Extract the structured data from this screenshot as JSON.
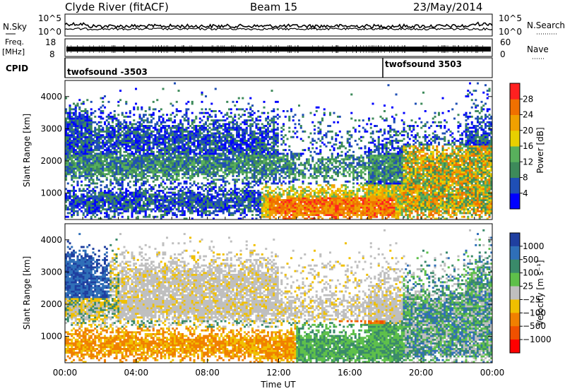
{
  "header": {
    "title": "Clyde River (fitACF)",
    "beam": "Beam 15",
    "date": "23/May/2014"
  },
  "noise_panel": {
    "left_label": "N.Sky",
    "right_label": "N.Search",
    "ticks": [
      "10^5",
      "10^0"
    ]
  },
  "freq_panel": {
    "left_label_1": "Freq.",
    "left_label_2": "[MHz]",
    "left_ticks": [
      "18",
      "8"
    ],
    "right_label": "Nave",
    "right_ticks": [
      "60",
      "0"
    ]
  },
  "cpid_panel": {
    "label": "CPID",
    "entries": [
      {
        "name": "twofsound -3503",
        "start_hour": 0
      },
      {
        "name": "twofsound 3503",
        "start_hour": 18
      }
    ]
  },
  "colors": {
    "power_scale": [
      "#0000ff",
      "#1f4fb5",
      "#3d8a5a",
      "#58b05c",
      "#e8d000",
      "#f0a000",
      "#f07000",
      "#ff2020"
    ],
    "velocity_scale": [
      "#1f3fa0",
      "#2f6fb8",
      "#3a8a6a",
      "#5ec04a",
      "#bfbfbf",
      "#f0c000",
      "#f08000",
      "#f05000",
      "#ff0000"
    ]
  },
  "chart_data": [
    {
      "type": "heatmap",
      "panel": "power",
      "ylabel": "Slant Range [km]",
      "xlabel": "",
      "x_range_hours": [
        0,
        24
      ],
      "ylim": [
        180,
        4500
      ],
      "y_ticks": [
        "1000",
        "2000",
        "3000",
        "4000"
      ],
      "colorbar": {
        "label": "Power [dB]",
        "tick_labels": [
          "4",
          "8",
          "12",
          "16",
          "20",
          "24",
          "28"
        ],
        "range": [
          0,
          30
        ]
      }
    },
    {
      "type": "heatmap",
      "panel": "velocity",
      "ylabel": "Slant Range [km]",
      "xlabel": "Time UT",
      "x_range_hours": [
        0,
        24
      ],
      "x_ticks": [
        "00:00",
        "04:00",
        "08:00",
        "12:00",
        "16:00",
        "20:00",
        "00:00"
      ],
      "ylim": [
        180,
        4500
      ],
      "y_ticks": [
        "1000",
        "2000",
        "3000",
        "4000"
      ],
      "colorbar": {
        "label": "Velocity [m s⁻¹]",
        "tick_labels": [
          "1000",
          "500",
          "100",
          "25",
          "−25",
          "−100",
          "−500",
          "−1000"
        ]
      }
    }
  ]
}
